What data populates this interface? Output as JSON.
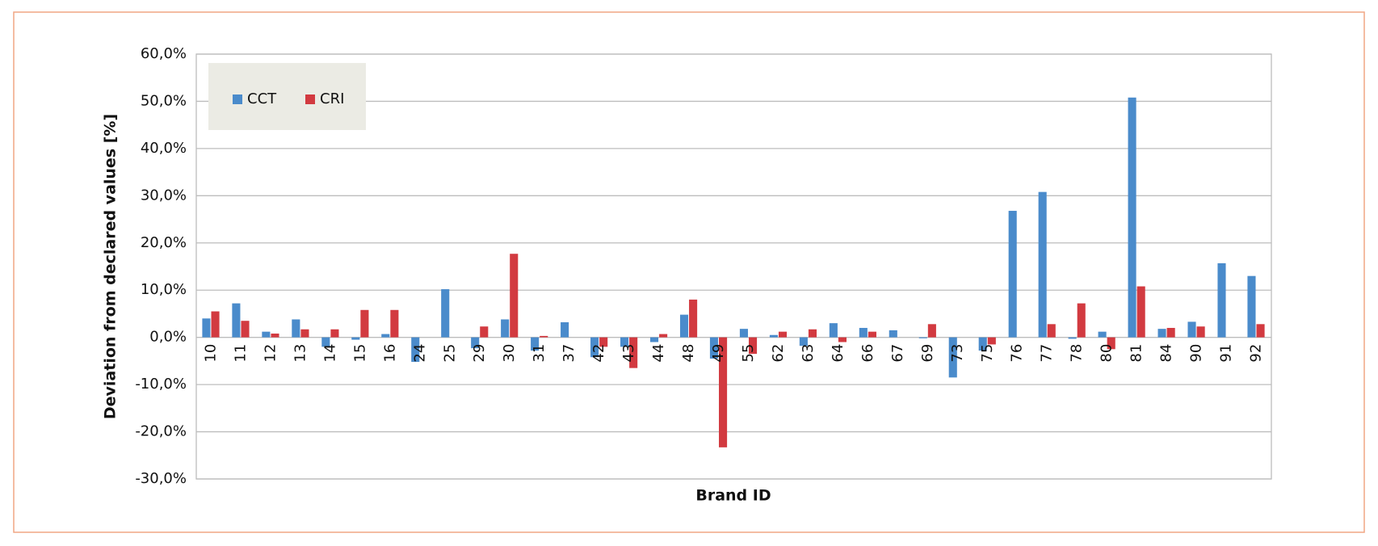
{
  "chart_data": {
    "type": "bar",
    "y_label": "Deviation from declared values [%]",
    "x_label": "Brand ID",
    "categories": [
      "10",
      "11",
      "12",
      "13",
      "14",
      "15",
      "16",
      "24",
      "25",
      "29",
      "30",
      "31",
      "37",
      "42",
      "43",
      "44",
      "48",
      "49",
      "55",
      "62",
      "63",
      "64",
      "66",
      "67",
      "69",
      "73",
      "75",
      "76",
      "77",
      "78",
      "80",
      "81",
      "84",
      "90",
      "91",
      "92"
    ],
    "series": [
      {
        "name": "CCT",
        "color": "#4a8bcb",
        "values": [
          4.0,
          7.2,
          1.2,
          3.8,
          -2.0,
          -0.5,
          0.7,
          -5.2,
          10.2,
          -2.3,
          3.8,
          -2.8,
          3.2,
          -4.2,
          -2.0,
          -1.0,
          4.8,
          -4.5,
          1.8,
          0.5,
          -1.8,
          3.0,
          2.0,
          1.5,
          -0.2,
          -8.5,
          -2.8,
          26.8,
          30.8,
          -0.3,
          1.2,
          50.8,
          1.8,
          3.3,
          15.7,
          13.0
        ]
      },
      {
        "name": "CRI",
        "color": "#d23a40",
        "values": [
          5.5,
          3.5,
          0.8,
          1.7,
          1.7,
          5.8,
          5.8,
          0,
          0,
          2.3,
          17.7,
          0.3,
          0,
          -2.0,
          -6.5,
          0.7,
          8.0,
          -23.3,
          -3.5,
          1.2,
          1.7,
          -1.0,
          1.2,
          0,
          2.8,
          0,
          -1.5,
          0,
          2.8,
          7.2,
          -2.5,
          10.8,
          2.0,
          2.3,
          0,
          2.8
        ]
      }
    ],
    "ylim": [
      -30,
      60
    ],
    "yticks": [
      {
        "value": -30,
        "label": "-30,0%"
      },
      {
        "value": -20,
        "label": "-20,0%"
      },
      {
        "value": -10,
        "label": "-10,0%"
      },
      {
        "value": 0,
        "label": "0,0%"
      },
      {
        "value": 10,
        "label": "10,0%"
      },
      {
        "value": 20,
        "label": "20,0%"
      },
      {
        "value": 30,
        "label": "30,0%"
      },
      {
        "value": 40,
        "label": "40,0%"
      },
      {
        "value": 50,
        "label": "50,0%"
      },
      {
        "value": 60,
        "label": "60,0%"
      }
    ],
    "grid": true,
    "legend": "upper-left"
  }
}
